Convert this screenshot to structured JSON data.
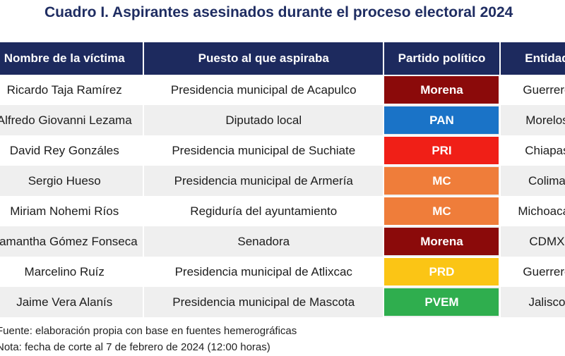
{
  "title": "Cuadro I. Aspirantes asesinados durante el proceso electoral 2024",
  "table": {
    "headers": [
      "Nombre de la víctima",
      "Puesto al que aspiraba",
      "Partido político",
      "Entidad"
    ],
    "rows": [
      {
        "name": "Ricardo Taja Ramírez",
        "post": "Presidencia municipal de Acapulco",
        "party": "Morena",
        "party_color": "#8b0a0a",
        "state": "Guerrero"
      },
      {
        "name": "Alfredo Giovanni Lezama",
        "post": "Diputado local",
        "party": "PAN",
        "party_color": "#1a73c7",
        "state": "Morelos"
      },
      {
        "name": "David Rey Gonzáles",
        "post": "Presidencia municipal de Suchiate",
        "party": "PRI",
        "party_color": "#f01f17",
        "state": "Chiapas"
      },
      {
        "name": "Sergio Hueso",
        "post": "Presidencia municipal de Armería",
        "party": "MC",
        "party_color": "#ef7d3a",
        "state": "Colima"
      },
      {
        "name": "Miriam Nohemi Ríos",
        "post": "Regiduría del ayuntamiento",
        "party": "MC",
        "party_color": "#ef7d3a",
        "state": "Michoacán"
      },
      {
        "name": "Samantha Gómez Fonseca",
        "post": "Senadora",
        "party": "Morena",
        "party_color": "#8b0a0a",
        "state": "CDMX"
      },
      {
        "name": "Marcelino Ruíz",
        "post": "Presidencia municipal de Atlixcac",
        "party": "PRD",
        "party_color": "#fbc515",
        "state": "Guerrero"
      },
      {
        "name": "Jaime Vera Alanís",
        "post": "Presidencia municipal de Mascota",
        "party": "PVEM",
        "party_color": "#2fae4e",
        "state": "Jalisco"
      }
    ]
  },
  "notes": [
    "Fuente: elaboración propia con base en fuentes hemerográficas",
    "Nota: fecha de corte al 7 de febrero de 2024 (12:00 horas)"
  ]
}
